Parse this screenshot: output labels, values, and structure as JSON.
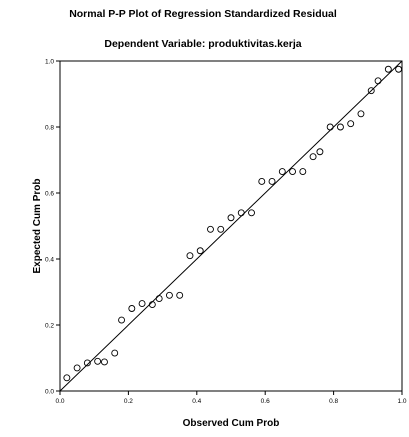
{
  "chart_data": {
    "type": "scatter",
    "title": "Normal P-P Plot of Regression Standardized Residual",
    "subtitle": "Dependent Variable: produktivitas.kerja",
    "xlabel": "Observed Cum Prob",
    "ylabel": "Expected Cum Prob",
    "xlim": [
      0,
      1
    ],
    "ylim": [
      0,
      1
    ],
    "x_ticks": [
      {
        "value": 0,
        "label": "0.0"
      },
      {
        "value": 0.2,
        "label": "0.2"
      },
      {
        "value": 0.4,
        "label": "0.4"
      },
      {
        "value": 0.6,
        "label": "0.6"
      },
      {
        "value": 0.8,
        "label": "0.8"
      },
      {
        "value": 1,
        "label": "1.0"
      }
    ],
    "y_ticks": [
      {
        "value": 0,
        "label": "0.0"
      },
      {
        "value": 0.2,
        "label": "0.2"
      },
      {
        "value": 0.4,
        "label": "0.4"
      },
      {
        "value": 0.6,
        "label": "0.6"
      },
      {
        "value": 0.8,
        "label": "0.8"
      },
      {
        "value": 1,
        "label": "1.0"
      }
    ],
    "grid": false,
    "reference_line": {
      "from": [
        0,
        0
      ],
      "to": [
        1,
        1
      ]
    },
    "marker": "open-circle",
    "marker_color": "#000000",
    "line_color": "#000000",
    "points": [
      {
        "x": 0.02,
        "y": 0.04
      },
      {
        "x": 0.05,
        "y": 0.07
      },
      {
        "x": 0.08,
        "y": 0.085
      },
      {
        "x": 0.11,
        "y": 0.09
      },
      {
        "x": 0.13,
        "y": 0.088
      },
      {
        "x": 0.16,
        "y": 0.115
      },
      {
        "x": 0.18,
        "y": 0.215
      },
      {
        "x": 0.21,
        "y": 0.25
      },
      {
        "x": 0.24,
        "y": 0.265
      },
      {
        "x": 0.27,
        "y": 0.262
      },
      {
        "x": 0.29,
        "y": 0.28
      },
      {
        "x": 0.32,
        "y": 0.29
      },
      {
        "x": 0.35,
        "y": 0.29
      },
      {
        "x": 0.38,
        "y": 0.41
      },
      {
        "x": 0.41,
        "y": 0.425
      },
      {
        "x": 0.44,
        "y": 0.49
      },
      {
        "x": 0.47,
        "y": 0.49
      },
      {
        "x": 0.5,
        "y": 0.525
      },
      {
        "x": 0.53,
        "y": 0.54
      },
      {
        "x": 0.56,
        "y": 0.54
      },
      {
        "x": 0.59,
        "y": 0.635
      },
      {
        "x": 0.62,
        "y": 0.635
      },
      {
        "x": 0.65,
        "y": 0.665
      },
      {
        "x": 0.68,
        "y": 0.665
      },
      {
        "x": 0.71,
        "y": 0.665
      },
      {
        "x": 0.74,
        "y": 0.71
      },
      {
        "x": 0.76,
        "y": 0.725
      },
      {
        "x": 0.79,
        "y": 0.8
      },
      {
        "x": 0.82,
        "y": 0.8
      },
      {
        "x": 0.85,
        "y": 0.81
      },
      {
        "x": 0.88,
        "y": 0.84
      },
      {
        "x": 0.91,
        "y": 0.91
      },
      {
        "x": 0.93,
        "y": 0.94
      },
      {
        "x": 0.96,
        "y": 0.975
      },
      {
        "x": 0.99,
        "y": 0.975
      }
    ]
  }
}
